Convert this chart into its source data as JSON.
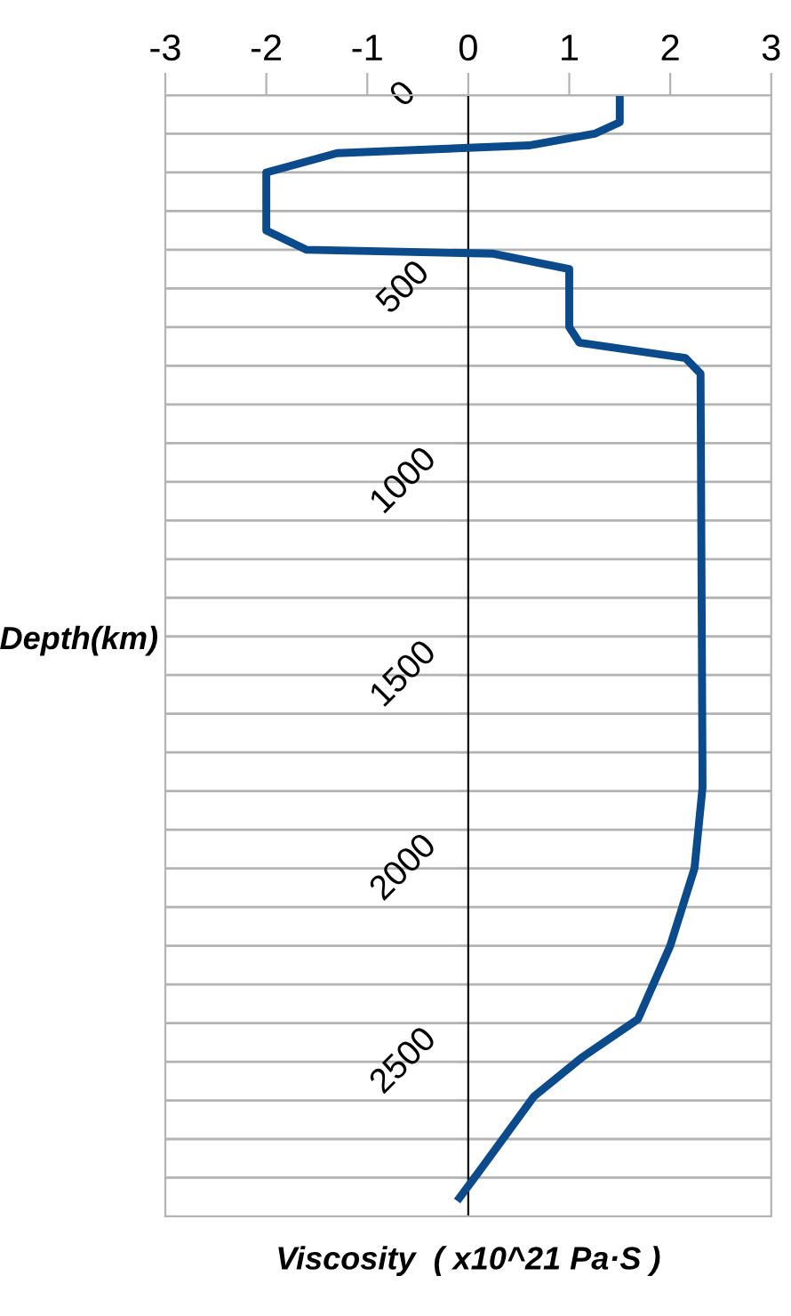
{
  "chart_data": {
    "type": "line",
    "xlabel": "Viscosity  ( x10^21 Pa·S )",
    "ylabel": "Depth(km)",
    "series": [
      {
        "color": "#0b4a8b",
        "x": [
          1.5,
          1.5,
          1.25,
          0.6,
          -1.3,
          -2.0,
          -2.0,
          -1.6,
          0.25,
          1.0,
          1.0,
          1.1,
          2.15,
          2.3,
          2.32,
          2.24,
          2.0,
          1.68,
          1.12,
          0.65,
          0.09,
          -0.11
        ],
        "values": [
          0,
          70,
          100,
          130,
          150,
          200,
          350,
          400,
          410,
          450,
          600,
          640,
          680,
          720,
          1790,
          2000,
          2200,
          2390,
          2490,
          2590,
          2790,
          2860
        ]
      }
    ],
    "xlim": [
      -3,
      3
    ],
    "xticks": [
      -3,
      -2,
      -1,
      0,
      1,
      2,
      3
    ],
    "ylim": [
      2900,
      0
    ],
    "yticks": [
      0,
      {
        "value": 100,
        "label": null
      },
      {
        "value": 200,
        "label": null
      },
      {
        "value": 300,
        "label": null
      },
      {
        "value": 400,
        "label": null
      },
      500,
      {
        "value": 600,
        "label": null
      },
      {
        "value": 700,
        "label": null
      },
      {
        "value": 800,
        "label": null
      },
      {
        "value": 900,
        "label": null
      },
      1000,
      {
        "value": 1100,
        "label": null
      },
      {
        "value": 1200,
        "label": null
      },
      {
        "value": 1300,
        "label": null
      },
      {
        "value": 1400,
        "label": null
      },
      1500,
      {
        "value": 1600,
        "label": null
      },
      {
        "value": 1700,
        "label": null
      },
      {
        "value": 1800,
        "label": null
      },
      {
        "value": 1900,
        "label": null
      },
      2000,
      {
        "value": 2100,
        "label": null
      },
      {
        "value": 2200,
        "label": null
      },
      {
        "value": 2300,
        "label": null
      },
      {
        "value": 2400,
        "label": null
      },
      2500,
      {
        "value": 2600,
        "label": null
      },
      {
        "value": 2700,
        "label": null
      },
      {
        "value": 2800,
        "label": null
      }
    ],
    "grid": "y",
    "marker": "none",
    "line_style": "solid",
    "legend": false
  }
}
